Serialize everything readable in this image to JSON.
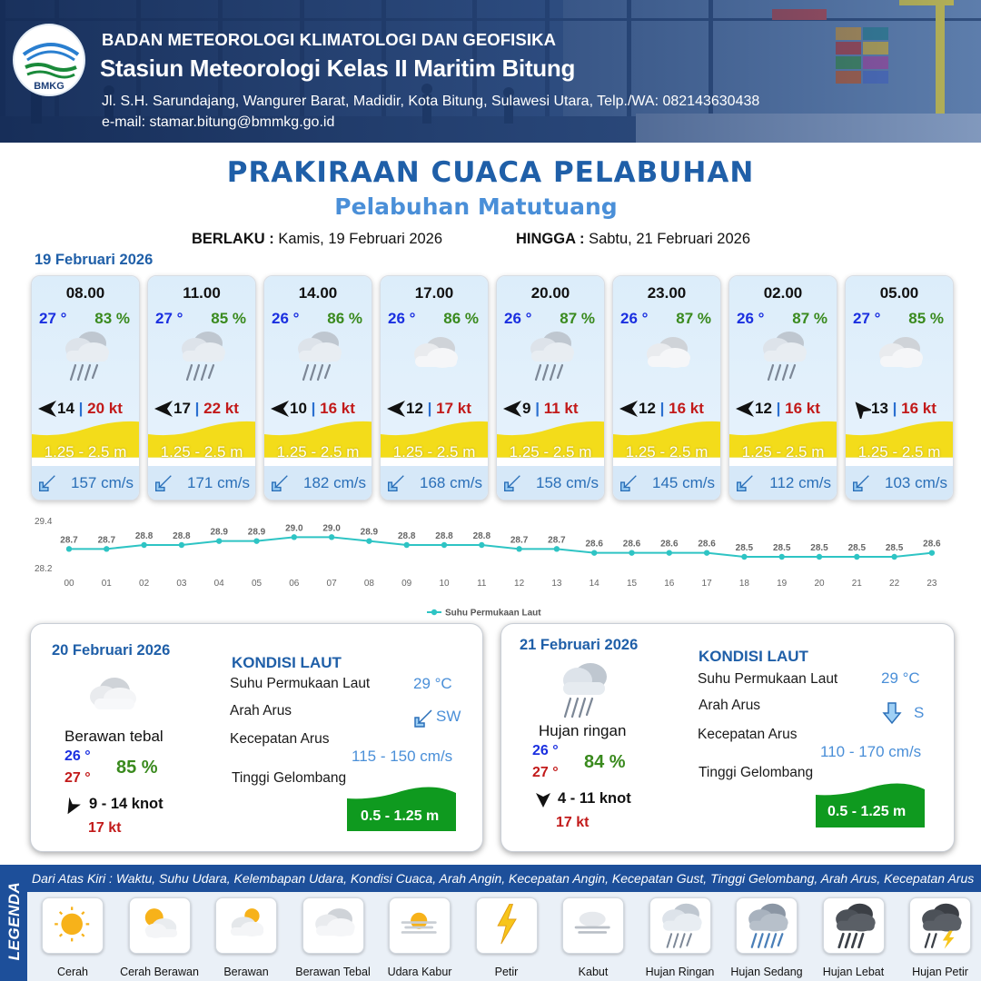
{
  "header": {
    "logo_text": "BMKG",
    "org_name": "BADAN METEOROLOGI KLIMATOLOGI DAN GEOFISIKA",
    "station": "Stasiun Meteorologi Kelas II Maritim Bitung",
    "address": "Jl. S.H. Sarundajang, Wangurer Barat, Madidir, Kota Bitung, Sulawesi Utara, Telp./WA: 082143630438",
    "email": "e-mail: stamar.bitung@bmmkg.go.id"
  },
  "title": "PRAKIRAAN CUACA PELABUHAN",
  "port": "Pelabuhan Matutuang",
  "validity": {
    "from_label": "BERLAKU :",
    "from_value": "Kamis, 19 Februari 2026",
    "to_label": "HINGGA :",
    "to_value": "Sabtu, 21 Februari 2026"
  },
  "day1": {
    "date": "19 Februari 2026",
    "forecasts": [
      {
        "time": "08.00",
        "temp": "27 °",
        "humidity": "83 %",
        "weather": "hujan-ringan-icon",
        "wind_dir": "W",
        "wind": "14",
        "gust": "20 kt",
        "wave": "1.25 - 2.5 m",
        "current": "157 cm/s"
      },
      {
        "time": "11.00",
        "temp": "27 °",
        "humidity": "85 %",
        "weather": "hujan-ringan-icon",
        "wind_dir": "W",
        "wind": "17",
        "gust": "22 kt",
        "wave": "1.25 - 2.5 m",
        "current": "171 cm/s"
      },
      {
        "time": "14.00",
        "temp": "26 °",
        "humidity": "86 %",
        "weather": "hujan-ringan-icon",
        "wind_dir": "W",
        "wind": "10",
        "gust": "16 kt",
        "wave": "1.25 - 2.5 m",
        "current": "182 cm/s"
      },
      {
        "time": "17.00",
        "temp": "26 °",
        "humidity": "86 %",
        "weather": "berawan-tebal-icon",
        "wind_dir": "W",
        "wind": "12",
        "gust": "17 kt",
        "wave": "1.25 - 2.5 m",
        "current": "168 cm/s"
      },
      {
        "time": "20.00",
        "temp": "26 °",
        "humidity": "87 %",
        "weather": "hujan-ringan-icon",
        "wind_dir": "W",
        "wind": "9",
        "gust": "11 kt",
        "wave": "1.25 - 2.5 m",
        "current": "158 cm/s"
      },
      {
        "time": "23.00",
        "temp": "26 °",
        "humidity": "87 %",
        "weather": "berawan-tebal-icon",
        "wind_dir": "W",
        "wind": "12",
        "gust": "16 kt",
        "wave": "1.25 - 2.5 m",
        "current": "145 cm/s"
      },
      {
        "time": "02.00",
        "temp": "26 °",
        "humidity": "87 %",
        "weather": "hujan-ringan-icon",
        "wind_dir": "W",
        "wind": "12",
        "gust": "16 kt",
        "wave": "1.25 - 2.5 m",
        "current": "112 cm/s"
      },
      {
        "time": "05.00",
        "temp": "27 °",
        "humidity": "85 %",
        "weather": "berawan-tebal-icon",
        "wind_dir": "SW",
        "wind": "13",
        "gust": "16 kt",
        "wave": "1.25 - 2.5 m",
        "current": "103 cm/s"
      }
    ]
  },
  "chart_data": {
    "type": "line",
    "title": "",
    "xlabel": "",
    "ylabel": "",
    "x": [
      "00",
      "01",
      "02",
      "03",
      "04",
      "05",
      "06",
      "07",
      "08",
      "09",
      "10",
      "11",
      "12",
      "13",
      "14",
      "15",
      "16",
      "17",
      "18",
      "19",
      "20",
      "21",
      "22",
      "23"
    ],
    "series": [
      {
        "name": "Suhu Permukaan Laut",
        "values": [
          28.7,
          28.7,
          28.8,
          28.8,
          28.9,
          28.9,
          29.0,
          29.0,
          28.9,
          28.8,
          28.8,
          28.8,
          28.7,
          28.7,
          28.6,
          28.6,
          28.6,
          28.6,
          28.5,
          28.5,
          28.5,
          28.5,
          28.5,
          28.6
        ],
        "color": "#2ec4c4"
      }
    ],
    "ylim": [
      28.2,
      29.4
    ],
    "y_ticks": [
      "29.4",
      "28.2"
    ],
    "legend_position": "bottom-center",
    "grid": false
  },
  "day2": {
    "date": "20 Februari 2026",
    "weather": "Berawan tebal",
    "weather_icon": "berawan-tebal-icon",
    "temp_min": "26 °",
    "temp_max": "27 °",
    "humidity": "85 %",
    "wind_dir": "SW",
    "wind": "9  - 14 knot",
    "gust": "17 kt",
    "sea_title": "KONDISI LAUT",
    "sst_label": "Suhu Permukaan Laut",
    "sst": "29 °C",
    "current_dir_label": "Arah Arus",
    "current_dir": "SW",
    "current_speed_label": "Kecepatan Arus",
    "current_speed": "115 - 150 cm/s",
    "wave_label": "Tinggi Gelombang",
    "wave": "0.5 - 1.25 m"
  },
  "day3": {
    "date": "21 Februari 2026",
    "weather": "Hujan ringan",
    "weather_icon": "hujan-ringan-icon",
    "temp_min": "26 °",
    "temp_max": "27 °",
    "humidity": "84 %",
    "wind_dir": "N",
    "wind": "4  - 11 knot",
    "gust": "17 kt",
    "sea_title": "KONDISI LAUT",
    "sst_label": "Suhu Permukaan Laut",
    "sst": "29 °C",
    "current_dir_label": "Arah Arus",
    "current_dir": "S",
    "current_speed_label": "Kecepatan Arus",
    "current_speed": "110 - 170 cm/s",
    "wave_label": "Tinggi Gelombang",
    "wave": "0.5 - 1.25 m"
  },
  "legend": {
    "title": "LEGENDA",
    "description": "Dari Atas Kiri : Waktu, Suhu Udara, Kelembapan Udara, Kondisi Cuaca, Arah Angin, Kecepatan Angin, Kecepatan Gust, Tinggi Gelombang, Arah Arus, Kecepatan Arus",
    "items": [
      {
        "label": "Cerah",
        "icon": "cerah-icon"
      },
      {
        "label": "Cerah Berawan",
        "icon": "cerah-berawan-icon"
      },
      {
        "label": "Berawan",
        "icon": "berawan-icon"
      },
      {
        "label": "Berawan Tebal",
        "icon": "berawan-tebal-icon"
      },
      {
        "label": "Udara Kabur",
        "icon": "udara-kabur-icon"
      },
      {
        "label": "Petir",
        "icon": "petir-icon"
      },
      {
        "label": "Kabut",
        "icon": "kabut-icon"
      },
      {
        "label": "Hujan Ringan",
        "icon": "hujan-ringan-icon"
      },
      {
        "label": "Hujan Sedang",
        "icon": "hujan-sedang-icon"
      },
      {
        "label": "Hujan Lebat",
        "icon": "hujan-lebat-icon"
      },
      {
        "label": "Hujan Petir",
        "icon": "hujan-petir-icon"
      }
    ]
  },
  "colors": {
    "title_blue": "#1f5fa8",
    "temp_blue": "#1a2fe0",
    "humidity_green": "#3a8a1e",
    "gust_red": "#c21a1a",
    "wave_yellow": "#f3dc1a",
    "wave_green": "#0f9a1f",
    "sst_line": "#2ec4c4",
    "legend_navy": "#1d4f9a"
  }
}
